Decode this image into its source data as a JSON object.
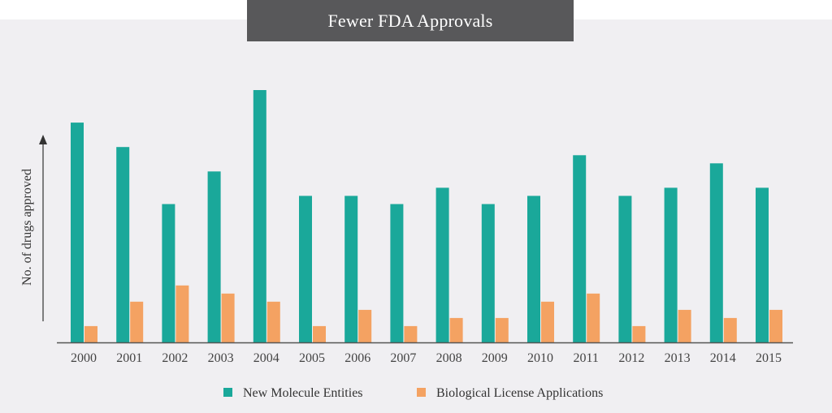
{
  "colors": {
    "nme": "#1aa89a",
    "bla": "#f4a262",
    "axis": "#555555",
    "panel": "#f0eff2"
  },
  "chart_data": {
    "type": "bar",
    "title": "Fewer FDA Approvals",
    "xlabel": "",
    "ylabel": "No. of drugs approved",
    "ylim": [
      0,
      31
    ],
    "categories": [
      "2000",
      "2001",
      "2002",
      "2003",
      "2004",
      "2005",
      "2006",
      "2007",
      "2008",
      "2009",
      "2010",
      "2011",
      "2012",
      "2013",
      "2014",
      "2015"
    ],
    "series": [
      {
        "name": "New Molecule Entities",
        "values": [
          27,
          24,
          17,
          21,
          31,
          18,
          18,
          17,
          19,
          17,
          18,
          23,
          18,
          19,
          22,
          19
        ]
      },
      {
        "name": "Biological License Applications",
        "values": [
          2,
          5,
          7,
          6,
          5,
          2,
          4,
          2,
          3,
          3,
          5,
          6,
          2,
          4,
          3,
          4
        ]
      }
    ],
    "legend": "bottom-center",
    "grid": false
  }
}
